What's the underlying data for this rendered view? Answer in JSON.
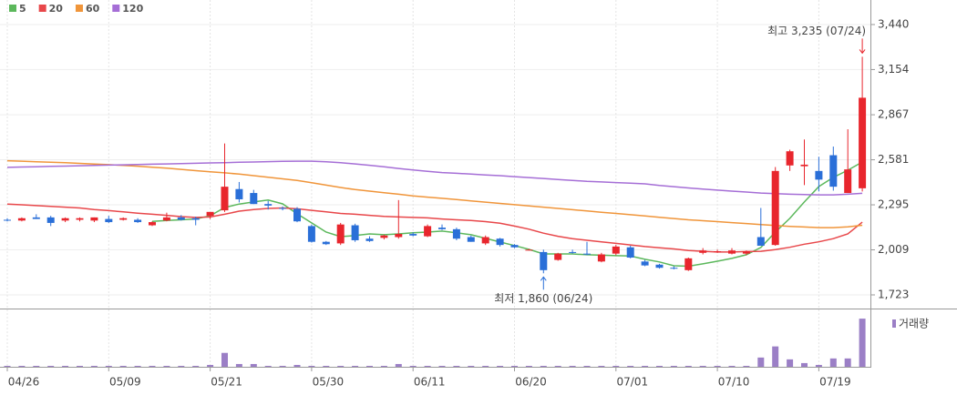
{
  "chart_data": {
    "type": "candlestick",
    "categories": [
      "04/26",
      null,
      null,
      null,
      null,
      null,
      null,
      "05/09",
      null,
      null,
      null,
      null,
      null,
      null,
      "05/21",
      null,
      null,
      null,
      null,
      null,
      null,
      "05/30",
      null,
      null,
      null,
      null,
      null,
      null,
      "06/11",
      null,
      null,
      null,
      null,
      null,
      null,
      "06/20",
      null,
      null,
      null,
      null,
      null,
      null,
      "07/01",
      null,
      null,
      null,
      null,
      null,
      null,
      "07/10",
      null,
      null,
      null,
      null,
      null,
      null,
      "07/19",
      null,
      null,
      null
    ],
    "open": [
      2200,
      2195,
      2215,
      2215,
      2195,
      2200,
      2195,
      2205,
      2200,
      2200,
      2165,
      2195,
      2215,
      2210,
      2225,
      2260,
      2395,
      2370,
      2300,
      2275,
      2270,
      2160,
      2060,
      2050,
      2165,
      2080,
      2085,
      2090,
      2110,
      2095,
      2150,
      2140,
      2090,
      2050,
      2080,
      2040,
      2010,
      1995,
      1945,
      1995,
      1985,
      1935,
      1985,
      2025,
      1935,
      1915,
      1895,
      1880,
      1990,
      1995,
      1985,
      1985,
      2090,
      2040,
      2545,
      2540,
      2510,
      2610,
      2370,
      2400
    ],
    "high": [
      2210,
      2215,
      2235,
      2225,
      2215,
      2215,
      2215,
      2225,
      2215,
      2210,
      2190,
      2245,
      2230,
      2220,
      2240,
      2685,
      2440,
      2390,
      2320,
      2285,
      2280,
      2170,
      2065,
      2180,
      2175,
      2095,
      2105,
      2325,
      2120,
      2170,
      2170,
      2150,
      2100,
      2100,
      2085,
      2045,
      2015,
      2010,
      1990,
      2010,
      2060,
      1990,
      2040,
      2035,
      1945,
      1920,
      1905,
      1960,
      2020,
      2010,
      2020,
      2005,
      2275,
      2535,
      2645,
      2710,
      2600,
      2665,
      2775,
      3235
    ],
    "low": [
      2190,
      2190,
      2205,
      2160,
      2185,
      2190,
      2185,
      2180,
      2195,
      2180,
      2160,
      2190,
      2195,
      2165,
      2205,
      2250,
      2310,
      2300,
      2265,
      2260,
      2185,
      2055,
      2040,
      2040,
      2060,
      2060,
      2075,
      2080,
      2095,
      2090,
      2135,
      2070,
      2060,
      2040,
      2030,
      2020,
      2005,
      1860,
      1940,
      1985,
      1975,
      1930,
      1975,
      1955,
      1905,
      1890,
      1885,
      1875,
      1980,
      1990,
      1980,
      1975,
      2035,
      2035,
      2510,
      2420,
      2380,
      2385,
      2370,
      2380
    ],
    "close": [
      2195,
      2210,
      2205,
      2180,
      2210,
      2210,
      2215,
      2185,
      2210,
      2185,
      2185,
      2215,
      2200,
      2200,
      2250,
      2410,
      2330,
      2300,
      2290,
      2270,
      2190,
      2060,
      2045,
      2170,
      2070,
      2065,
      2100,
      2110,
      2100,
      2160,
      2140,
      2080,
      2060,
      2090,
      2040,
      2025,
      2010,
      1880,
      1985,
      1990,
      1980,
      1980,
      2030,
      1960,
      1910,
      1895,
      1890,
      1955,
      2005,
      2000,
      2005,
      2000,
      2035,
      2510,
      2635,
      2550,
      2455,
      2410,
      2520,
      2975
    ],
    "up_color": "#e8262d",
    "down_color": "#2a6fd8",
    "series": [
      {
        "name": "5",
        "color": "#5cb85c",
        "values": [
          null,
          null,
          null,
          null,
          null,
          null,
          null,
          null,
          null,
          null,
          2190,
          2195,
          2200,
          2205,
          2225,
          2278,
          2300,
          2313,
          2325,
          2301,
          2238,
          2180,
          2122,
          2093,
          2100,
          2110,
          2105,
          2110,
          2117,
          2122,
          2128,
          2117,
          2105,
          2082,
          2059,
          2036,
          2012,
          1983,
          1983,
          1983,
          1978,
          1975,
          1972,
          1970,
          1949,
          1932,
          1908,
          1905,
          1920,
          1937,
          1955,
          1978,
          2024,
          2122,
          2209,
          2313,
          2411,
          2469,
          2515,
          2567
        ]
      },
      {
        "name": "20",
        "color": "#e8474a",
        "values": [
          2300,
          2295,
          2290,
          2285,
          2280,
          2275,
          2265,
          2258,
          2250,
          2242,
          2235,
          2228,
          2220,
          2215,
          2218,
          2235,
          2255,
          2265,
          2272,
          2275,
          2270,
          2260,
          2250,
          2240,
          2235,
          2228,
          2222,
          2218,
          2215,
          2212,
          2205,
          2200,
          2195,
          2188,
          2178,
          2160,
          2140,
          2115,
          2095,
          2080,
          2070,
          2060,
          2050,
          2040,
          2030,
          2022,
          2015,
          2005,
          2000,
          1995,
          1995,
          1998,
          2000,
          2010,
          2025,
          2045,
          2060,
          2080,
          2110,
          2185
        ]
      },
      {
        "name": "60",
        "color": "#f0953a",
        "values": [
          2575,
          2572,
          2568,
          2565,
          2562,
          2558,
          2554,
          2550,
          2545,
          2540,
          2534,
          2528,
          2520,
          2512,
          2505,
          2498,
          2490,
          2480,
          2470,
          2460,
          2450,
          2435,
          2420,
          2405,
          2392,
          2382,
          2372,
          2362,
          2352,
          2344,
          2336,
          2328,
          2320,
          2312,
          2304,
          2296,
          2288,
          2280,
          2272,
          2264,
          2256,
          2248,
          2240,
          2232,
          2224,
          2216,
          2208,
          2200,
          2194,
          2188,
          2182,
          2176,
          2170,
          2164,
          2158,
          2154,
          2150,
          2150,
          2155,
          2165
        ]
      },
      {
        "name": "120",
        "color": "#a56ed6",
        "values": [
          2533,
          2535,
          2537,
          2539,
          2541,
          2543,
          2545,
          2547,
          2549,
          2551,
          2553,
          2555,
          2557,
          2559,
          2561,
          2563,
          2565,
          2567,
          2569,
          2571,
          2572,
          2572,
          2568,
          2562,
          2555,
          2546,
          2536,
          2526,
          2516,
          2508,
          2500,
          2495,
          2490,
          2485,
          2480,
          2474,
          2468,
          2462,
          2456,
          2450,
          2444,
          2440,
          2436,
          2432,
          2428,
          2418,
          2410,
          2402,
          2395,
          2388,
          2382,
          2376,
          2370,
          2366,
          2362,
          2360,
          2358,
          2358,
          2362,
          2368
        ]
      }
    ],
    "volume_name": "거래량",
    "volume_color": "#9b7fc6",
    "volume": [
      1,
      1,
      1,
      1,
      1,
      1,
      1,
      1,
      1,
      1,
      1,
      1,
      1,
      1,
      2,
      15,
      3,
      3,
      1,
      1,
      2,
      1,
      1,
      1,
      1,
      1,
      1,
      3,
      1,
      1,
      1,
      1,
      1,
      1,
      1,
      1,
      1,
      1,
      1,
      1,
      1,
      1,
      1,
      1,
      1,
      1,
      1,
      1,
      1,
      1,
      1,
      1,
      10,
      22,
      8,
      4,
      2,
      9,
      9,
      52
    ],
    "volume_lim": [
      0,
      58
    ],
    "ylim": [
      1642,
      3538
    ],
    "yticks": [
      {
        "value": 3440,
        "label": "3,440"
      },
      {
        "value": 3154,
        "label": "3,154"
      },
      {
        "value": 2867,
        "label": "2,867"
      },
      {
        "value": 2581,
        "label": "2,581"
      },
      {
        "value": 2295,
        "label": "2,295"
      },
      {
        "value": 2009,
        "label": "2,009"
      },
      {
        "value": 1723,
        "label": "1,723"
      }
    ],
    "high_label": "최고 3,235 (07/24)",
    "low_label": "최저 1,860 (06/24)",
    "grid": true
  }
}
